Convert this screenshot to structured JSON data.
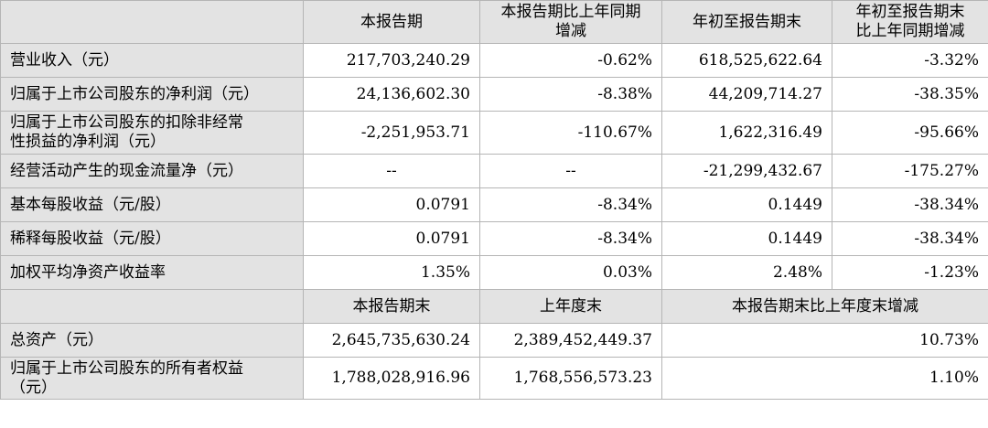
{
  "header": {
    "col1": "本报告期",
    "col2_line1": "本报告期比上年同期",
    "col2_line2": "增减",
    "col3": "年初至报告期末",
    "col4_line1": "年初至报告期末",
    "col4_line2": "比上年同期增减"
  },
  "rows": [
    {
      "label": "营业收入（元）",
      "v1": "217,703,240.29",
      "v2": "-0.62%",
      "v3": "618,525,622.64",
      "v4": "-3.32%"
    },
    {
      "label": "归属于上市公司股东的净利润（元）",
      "v1": "24,136,602.30",
      "v2": "-8.38%",
      "v3": "44,209,714.27",
      "v4": "-38.35%"
    },
    {
      "label_line1": "归属于上市公司股东的扣除非经常",
      "label_line2": "性损益的净利润（元）",
      "v1": "-2,251,953.71",
      "v2": "-110.67%",
      "v3": "1,622,316.49",
      "v4": "-95.66%"
    },
    {
      "label": "经营活动产生的现金流量净（元）",
      "v1": "--",
      "v2": "--",
      "v3": "-21,299,432.67",
      "v4": "-175.27%"
    },
    {
      "label": "基本每股收益（元/股）",
      "v1": "0.0791",
      "v2": "-8.34%",
      "v3": "0.1449",
      "v4": "-38.34%"
    },
    {
      "label": "稀释每股收益（元/股）",
      "v1": "0.0791",
      "v2": "-8.34%",
      "v3": "0.1449",
      "v4": "-38.34%"
    },
    {
      "label": "加权平均净资产收益率",
      "v1": "1.35%",
      "v2": "0.03%",
      "v3": "2.48%",
      "v4": "-1.23%"
    }
  ],
  "header2": {
    "col1": "本报告期末",
    "col2": "上年度末",
    "col3": "本报告期末比上年度末增减"
  },
  "rows2": [
    {
      "label": "总资产（元）",
      "v1": "2,645,735,630.24",
      "v2": "2,389,452,449.37",
      "v3": "10.73%"
    },
    {
      "label_line1": "归属于上市公司股东的所有者权益",
      "label_line2": "（元）",
      "v1": "1,788,028,916.96",
      "v2": "1,768,556,573.23",
      "v3": "1.10%"
    }
  ]
}
